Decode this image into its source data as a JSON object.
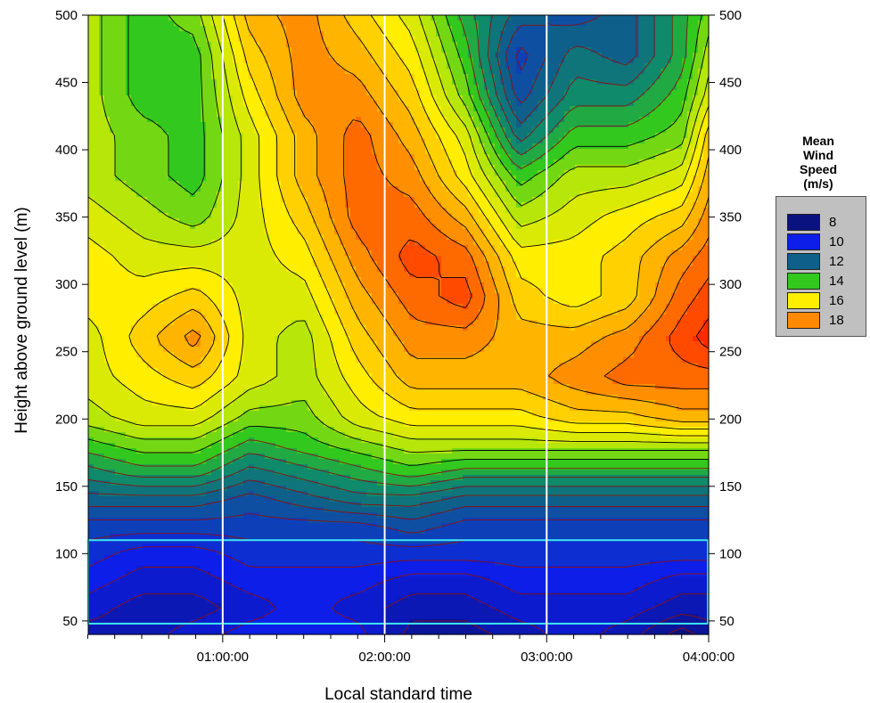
{
  "chart_data": {
    "type": "heatmap",
    "title": "",
    "xlabel": "Local standard time",
    "ylabel": "Height above ground level (m)",
    "x_tick_labels": [
      "01:00:00",
      "02:00:00",
      "03:00:00",
      "04:00:00"
    ],
    "x_ticks_hours": [
      1,
      2,
      3,
      4
    ],
    "xlim_hours": [
      0.17,
      4.0
    ],
    "y_ticks": [
      50,
      100,
      150,
      200,
      250,
      300,
      350,
      400,
      450,
      500
    ],
    "ylim": [
      40,
      500
    ],
    "x_hours": [
      0.17,
      0.5,
      0.83,
      1.17,
      1.5,
      1.83,
      2.17,
      2.5,
      2.83,
      3.17,
      3.5,
      3.83,
      4.0
    ],
    "y_heights": [
      40,
      60,
      80,
      100,
      120,
      140,
      160,
      180,
      200,
      230,
      260,
      290,
      320,
      350,
      380,
      410,
      440,
      470,
      500
    ],
    "z": [
      [
        9.0,
        9.0,
        9.5,
        10.0,
        10.0,
        10.0,
        8.5,
        8.5,
        9.0,
        9.5,
        9.0,
        8.0,
        8.5
      ],
      [
        9.5,
        9.0,
        9.0,
        9.5,
        10.0,
        9.5,
        9.0,
        9.0,
        9.5,
        9.5,
        9.5,
        9.0,
        9.0
      ],
      [
        10.0,
        9.5,
        9.5,
        10.0,
        10.0,
        10.0,
        9.5,
        9.5,
        10.0,
        10.0,
        10.0,
        9.5,
        9.5
      ],
      [
        10.5,
        10.0,
        10.0,
        10.5,
        10.5,
        10.5,
        10.5,
        10.5,
        10.5,
        10.5,
        10.5,
        10.5,
        10.5
      ],
      [
        11.0,
        11.0,
        11.0,
        11.0,
        11.0,
        11.0,
        11.5,
        11.0,
        11.0,
        11.0,
        11.0,
        11.0,
        11.0
      ],
      [
        12.0,
        12.0,
        12.0,
        11.5,
        12.0,
        12.5,
        12.5,
        12.0,
        12.0,
        12.0,
        12.0,
        12.0,
        12.0
      ],
      [
        13.0,
        13.5,
        13.5,
        12.5,
        13.0,
        13.5,
        14.0,
        13.5,
        13.5,
        13.5,
        13.5,
        13.5,
        13.5
      ],
      [
        14.0,
        14.5,
        14.5,
        13.5,
        14.0,
        14.5,
        15.0,
        15.0,
        15.0,
        15.0,
        15.0,
        15.0,
        15.0
      ],
      [
        15.0,
        15.5,
        15.5,
        14.5,
        14.5,
        15.5,
        16.0,
        16.0,
        16.0,
        16.5,
        16.5,
        17.0,
        17.0
      ],
      [
        15.5,
        16.0,
        16.5,
        15.5,
        15.0,
        16.0,
        17.0,
        17.0,
        17.0,
        17.5,
        18.0,
        18.0,
        18.0
      ],
      [
        15.5,
        16.5,
        17.5,
        15.5,
        15.0,
        16.5,
        17.5,
        17.5,
        17.0,
        17.0,
        17.5,
        18.5,
        19.0
      ],
      [
        16.0,
        16.0,
        16.5,
        15.5,
        15.5,
        17.0,
        18.0,
        18.5,
        16.5,
        16.0,
        16.5,
        18.0,
        18.5
      ],
      [
        16.0,
        15.5,
        15.5,
        15.5,
        16.0,
        17.5,
        18.5,
        18.0,
        16.0,
        16.0,
        16.5,
        17.5,
        18.0
      ],
      [
        15.5,
        15.0,
        14.5,
        15.5,
        16.5,
        18.0,
        18.0,
        17.0,
        15.0,
        15.5,
        16.0,
        16.5,
        17.5
      ],
      [
        15.0,
        14.5,
        14.0,
        15.5,
        17.0,
        18.0,
        17.5,
        16.0,
        14.0,
        15.0,
        15.0,
        15.5,
        17.0
      ],
      [
        15.0,
        14.5,
        14.0,
        15.5,
        17.0,
        18.0,
        17.0,
        15.5,
        12.5,
        14.0,
        14.0,
        14.5,
        16.5
      ],
      [
        15.0,
        14.0,
        14.0,
        16.0,
        17.5,
        17.5,
        16.5,
        14.5,
        11.5,
        13.0,
        13.0,
        14.0,
        15.5
      ],
      [
        15.0,
        14.0,
        14.0,
        16.5,
        17.5,
        17.0,
        16.0,
        14.0,
        11.0,
        12.5,
        12.0,
        13.5,
        15.0
      ],
      [
        15.0,
        14.0,
        14.5,
        17.0,
        17.5,
        16.5,
        15.5,
        13.5,
        12.0,
        11.5,
        12.0,
        13.5,
        14.5
      ]
    ],
    "highlight_box": {
      "x_hours": [
        0.17,
        4.0
      ],
      "y": [
        48,
        110
      ]
    },
    "colorbar": {
      "title": "Mean\nWind\nSpeed\n(m/s)",
      "levels": [
        "8",
        "10",
        "12",
        "14",
        "16",
        "18"
      ]
    },
    "colorscale": [
      {
        "v": 8,
        "c": "#0a1280"
      },
      {
        "v": 10,
        "c": "#0c1ee8"
      },
      {
        "v": 12,
        "c": "#0e5f8a"
      },
      {
        "v": 13,
        "c": "#0f8a6a"
      },
      {
        "v": 14,
        "c": "#32c81e"
      },
      {
        "v": 15,
        "c": "#b6e60a"
      },
      {
        "v": 16,
        "c": "#ffee00"
      },
      {
        "v": 17,
        "c": "#ffb400"
      },
      {
        "v": 18,
        "c": "#ff6a00"
      },
      {
        "v": 19,
        "c": "#ff2a00"
      }
    ],
    "legend_colors": [
      "#0a1280",
      "#0c1ee8",
      "#0e5f8a",
      "#32c81e",
      "#ffee00",
      "#ff8a00"
    ],
    "grid": true,
    "legend_position": "right"
  }
}
